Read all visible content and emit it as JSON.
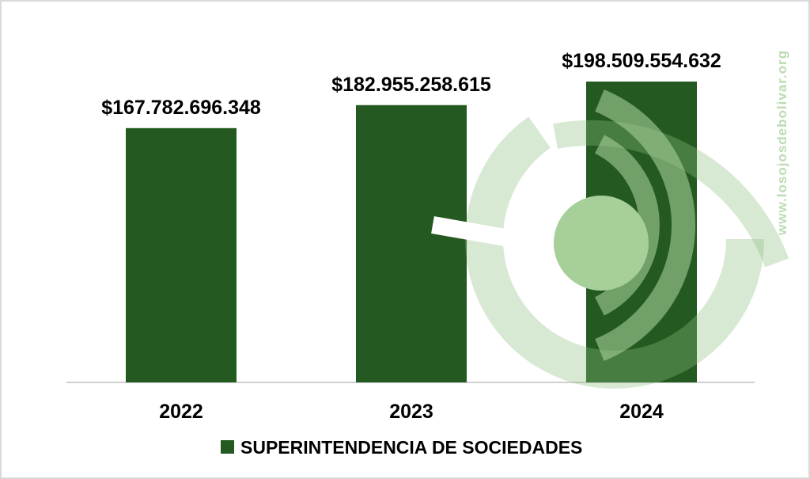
{
  "chart_data": {
    "type": "bar",
    "categories": [
      "2022",
      "2023",
      "2024"
    ],
    "values": [
      167782696348,
      182955258615,
      198509554632
    ],
    "value_labels": [
      "$167.782.696.348",
      "$182.955.258.615",
      "$198.509.554.632"
    ],
    "series": [
      {
        "name": "SUPERINTENDENCIA DE SOCIEDADES",
        "values": [
          167782696348,
          182955258615,
          198509554632
        ]
      }
    ],
    "title": "",
    "xlabel": "",
    "ylabel": "",
    "ylim": [
      0,
      200000000000
    ],
    "grid": false,
    "legend_position": "bottom",
    "colors": {
      "bar": "#245a21",
      "axis": "#d0d0d0",
      "watermark": "#8cc080"
    }
  },
  "watermark": {
    "text": "www.losojosdebolivar.org",
    "icon": "los-ojos-de-bolivar-logo-icon"
  }
}
